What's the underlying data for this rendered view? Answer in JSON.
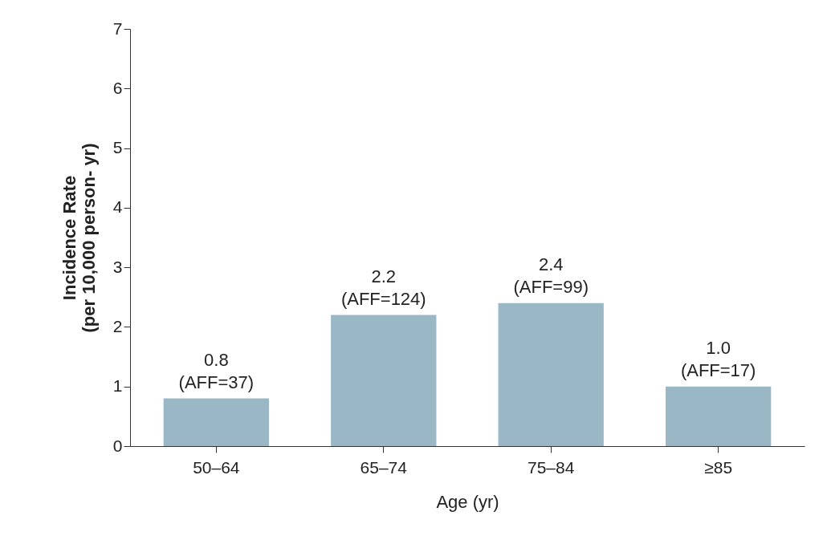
{
  "chart_data": {
    "type": "bar",
    "xlabel": "Age (yr)",
    "ylabel": "Incidence Rate\n(per 10,000 person- yr)",
    "categories": [
      "50–64",
      "65–74",
      "75–84",
      "≥85"
    ],
    "values": [
      0.8,
      2.2,
      2.4,
      1.0
    ],
    "value_labels": [
      "0.8\n(AFF=37)",
      "2.2\n(AFF=124)",
      "2.4\n(AFF=99)",
      "1.0\n(AFF=17)"
    ],
    "color": "#9ab7c6",
    "ylim": [
      0,
      7
    ],
    "yticks": [
      0,
      1,
      2,
      3,
      4,
      5,
      6,
      7
    ],
    "grid": false
  }
}
